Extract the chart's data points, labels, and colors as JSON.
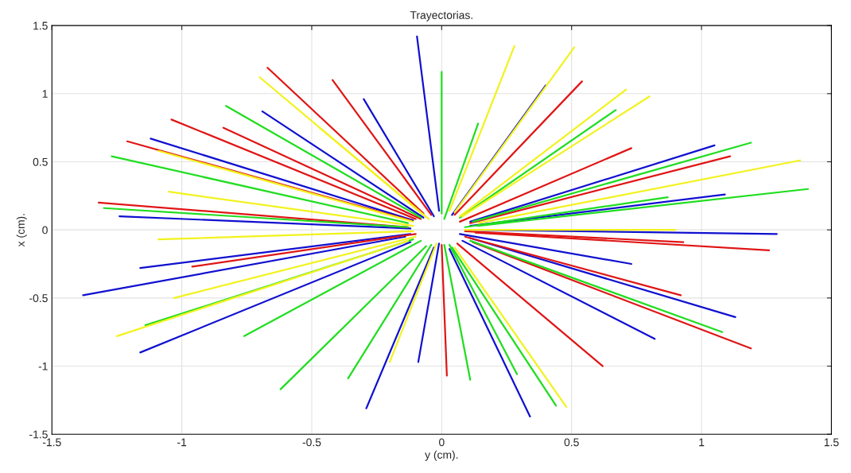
{
  "chart_data": {
    "type": "line",
    "title": "Trayectorias.",
    "xlabel": "y (cm).",
    "ylabel": "x (cm).",
    "xlim": [
      -1.5,
      1.5
    ],
    "ylim": [
      -1.5,
      1.5
    ],
    "xticks": [
      -1.5,
      -1,
      -0.5,
      0,
      0.5,
      1,
      1.5
    ],
    "yticks": [
      -1.5,
      -1,
      -0.5,
      0,
      0.5,
      1,
      1.5
    ],
    "grid": true,
    "marker": "none",
    "line_style": "solid",
    "series": [
      {
        "color": "#1010d0",
        "x": [
          -0.01,
          -0.095
        ],
        "values": [
          0.14,
          1.42
        ]
      },
      {
        "color": "#1010d0",
        "x": [
          -0.03,
          -0.3
        ],
        "values": [
          0.1,
          0.96
        ]
      },
      {
        "color": "#1010d0",
        "x": [
          0.04,
          0.4
        ],
        "values": [
          0.11,
          1.06
        ]
      },
      {
        "color": "#1010d0",
        "x": [
          0.11,
          1.05
        ],
        "values": [
          0.06,
          0.62
        ]
      },
      {
        "color": "#1010d0",
        "x": [
          0.13,
          1.29
        ],
        "values": [
          0.0,
          -0.03
        ]
      },
      {
        "color": "#1010d0",
        "x": [
          -0.14,
          -1.38
        ],
        "values": [
          -0.05,
          -0.48
        ]
      },
      {
        "color": "#1010d0",
        "x": [
          -0.12,
          -1.16
        ],
        "values": [
          -0.09,
          -0.9
        ]
      },
      {
        "color": "#1010d0",
        "x": [
          -0.03,
          -0.29
        ],
        "values": [
          -0.13,
          -1.31
        ]
      },
      {
        "color": "#1010d0",
        "x": [
          0.03,
          0.34
        ],
        "values": [
          -0.14,
          -1.37
        ]
      },
      {
        "color": "#1010d0",
        "x": [
          0.11,
          1.13
        ],
        "values": [
          -0.06,
          -0.64
        ]
      },
      {
        "color": "#1010d0",
        "x": [
          0.08,
          0.82
        ],
        "values": [
          -0.08,
          -0.8
        ]
      },
      {
        "color": "#1010d0",
        "x": [
          -0.11,
          -1.12
        ],
        "values": [
          0.07,
          0.67
        ]
      },
      {
        "color": "#1010d0",
        "x": [
          -0.12,
          -1.24
        ],
        "values": [
          0.01,
          0.1
        ]
      },
      {
        "color": "#1010d0",
        "x": [
          -0.12,
          -1.16
        ],
        "values": [
          -0.03,
          -0.28
        ]
      },
      {
        "color": "#1010d0",
        "x": [
          0.11,
          1.09
        ],
        "values": [
          0.03,
          0.26
        ]
      },
      {
        "color": "#1010d0",
        "x": [
          0.07,
          0.73
        ],
        "values": [
          -0.03,
          -0.25
        ]
      },
      {
        "color": "#1010d0",
        "x": [
          -0.01,
          -0.09
        ],
        "values": [
          -0.1,
          -0.97
        ]
      },
      {
        "color": "#1010d0",
        "x": [
          -0.07,
          -0.69
        ],
        "values": [
          0.09,
          0.87
        ]
      },
      {
        "color": "#e01515",
        "x": [
          -0.07,
          -0.67
        ],
        "values": [
          0.12,
          1.19
        ]
      },
      {
        "color": "#e01515",
        "x": [
          -0.04,
          -0.42
        ],
        "values": [
          0.11,
          1.1
        ]
      },
      {
        "color": "#e01515",
        "x": [
          -0.1,
          -1.04
        ],
        "values": [
          0.08,
          0.81
        ]
      },
      {
        "color": "#e01515",
        "x": [
          -0.12,
          -1.21
        ],
        "values": [
          0.07,
          0.65
        ]
      },
      {
        "color": "#e01515",
        "x": [
          -0.13,
          -1.32
        ],
        "values": [
          0.02,
          0.2
        ]
      },
      {
        "color": "#e01515",
        "x": [
          0.05,
          0.54
        ],
        "values": [
          0.11,
          1.09
        ]
      },
      {
        "color": "#e01515",
        "x": [
          0.07,
          0.73
        ],
        "values": [
          0.06,
          0.6
        ]
      },
      {
        "color": "#e01515",
        "x": [
          0.11,
          1.11
        ],
        "values": [
          0.05,
          0.54
        ]
      },
      {
        "color": "#e01515",
        "x": [
          0.13,
          1.26
        ],
        "values": [
          -0.02,
          -0.15
        ]
      },
      {
        "color": "#e01515",
        "x": [
          0.12,
          1.19
        ],
        "values": [
          -0.09,
          -0.87
        ]
      },
      {
        "color": "#e01515",
        "x": [
          0.06,
          0.62
        ],
        "values": [
          -0.1,
          -1.0
        ]
      },
      {
        "color": "#e01515",
        "x": [
          0.0,
          0.02
        ],
        "values": [
          -0.11,
          -1.07
        ]
      },
      {
        "color": "#e01515",
        "x": [
          0.09,
          0.92
        ],
        "values": [
          -0.05,
          -0.48
        ]
      },
      {
        "color": "#e01515",
        "x": [
          -0.1,
          -0.96
        ],
        "values": [
          -0.03,
          -0.27
        ]
      },
      {
        "color": "#e01515",
        "x": [
          -0.08,
          -0.84
        ],
        "values": [
          0.08,
          0.75
        ]
      },
      {
        "color": "#e01515",
        "x": [
          0.09,
          0.93
        ],
        "values": [
          -0.01,
          -0.09
        ]
      },
      {
        "color": "#20dd20",
        "x": [
          0.0,
          0.0
        ],
        "values": [
          0.12,
          1.16
        ]
      },
      {
        "color": "#20dd20",
        "x": [
          -0.13,
          -1.27
        ],
        "values": [
          0.05,
          0.54
        ]
      },
      {
        "color": "#20dd20",
        "x": [
          -0.13,
          -1.3
        ],
        "values": [
          0.02,
          0.16
        ]
      },
      {
        "color": "#20dd20",
        "x": [
          -0.08,
          -0.83
        ],
        "values": [
          0.09,
          0.91
        ]
      },
      {
        "color": "#20dd20",
        "x": [
          0.12,
          1.19
        ],
        "values": [
          0.06,
          0.64
        ]
      },
      {
        "color": "#20dd20",
        "x": [
          0.14,
          1.41
        ],
        "values": [
          0.03,
          0.3
        ]
      },
      {
        "color": "#20dd20",
        "x": [
          0.07,
          0.67
        ],
        "values": [
          0.09,
          0.88
        ]
      },
      {
        "color": "#20dd20",
        "x": [
          -0.06,
          -0.62
        ],
        "values": [
          -0.12,
          -1.17
        ]
      },
      {
        "color": "#20dd20",
        "x": [
          -0.04,
          -0.36
        ],
        "values": [
          -0.11,
          -1.09
        ]
      },
      {
        "color": "#20dd20",
        "x": [
          0.01,
          0.11
        ],
        "values": [
          -0.11,
          -1.1
        ]
      },
      {
        "color": "#20dd20",
        "x": [
          0.04,
          0.44
        ],
        "values": [
          -0.13,
          -1.29
        ]
      },
      {
        "color": "#20dd20",
        "x": [
          0.11,
          1.08
        ],
        "values": [
          -0.08,
          -0.75
        ]
      },
      {
        "color": "#20dd20",
        "x": [
          -0.11,
          -1.14
        ],
        "values": [
          -0.07,
          -0.7
        ]
      },
      {
        "color": "#20dd20",
        "x": [
          -0.08,
          -0.76
        ],
        "values": [
          -0.08,
          -0.78
        ]
      },
      {
        "color": "#20dd20",
        "x": [
          0.01,
          0.14
        ],
        "values": [
          0.08,
          0.78
        ]
      },
      {
        "color": "#20dd20",
        "x": [
          0.09,
          0.87
        ],
        "values": [
          0.02,
          0.24
        ]
      },
      {
        "color": "#20dd20",
        "x": [
          0.03,
          0.29
        ],
        "values": [
          -0.11,
          -1.06
        ]
      },
      {
        "color": "#f2f21e",
        "x": [
          0.03,
          0.28
        ],
        "values": [
          0.14,
          1.35
        ]
      },
      {
        "color": "#f2f21e",
        "x": [
          0.05,
          0.51
        ],
        "values": [
          0.13,
          1.34
        ]
      },
      {
        "color": "#f2f21e",
        "x": [
          0.07,
          0.71
        ],
        "values": [
          0.1,
          1.03
        ]
      },
      {
        "color": "#f2f21e",
        "x": [
          0.08,
          0.8
        ],
        "values": [
          0.1,
          0.98
        ]
      },
      {
        "color": "#f2f21e",
        "x": [
          -0.07,
          -0.7
        ],
        "values": [
          0.11,
          1.12
        ]
      },
      {
        "color": "#f2f21e",
        "x": [
          0.14,
          1.38
        ],
        "values": [
          0.05,
          0.51
        ]
      },
      {
        "color": "#f2f21e",
        "x": [
          -0.13,
          -1.25
        ],
        "values": [
          -0.08,
          -0.78
        ]
      },
      {
        "color": "#f2f21e",
        "x": [
          -0.1,
          -1.03
        ],
        "values": [
          -0.05,
          -0.5
        ]
      },
      {
        "color": "#f2f21e",
        "x": [
          -0.11,
          -1.09
        ],
        "values": [
          0.06,
          0.58
        ]
      },
      {
        "color": "#f2f21e",
        "x": [
          -0.11,
          -1.09
        ],
        "values": [
          -0.01,
          -0.07
        ]
      },
      {
        "color": "#f2f21e",
        "x": [
          0.05,
          0.48
        ],
        "values": [
          -0.13,
          -1.3
        ]
      },
      {
        "color": "#f2f21e",
        "x": [
          -0.02,
          -0.2
        ],
        "values": [
          -0.1,
          -0.97
        ]
      },
      {
        "color": "#f2f21e",
        "x": [
          0.09,
          0.9
        ],
        "values": [
          0.0,
          0.0
        ]
      },
      {
        "color": "#f2f21e",
        "x": [
          -0.11,
          -1.05
        ],
        "values": [
          0.03,
          0.28
        ]
      },
      {
        "color": "#f2f21e",
        "x": [
          -0.05,
          -0.47
        ],
        "values": [
          0.08,
          0.75
        ]
      }
    ]
  }
}
